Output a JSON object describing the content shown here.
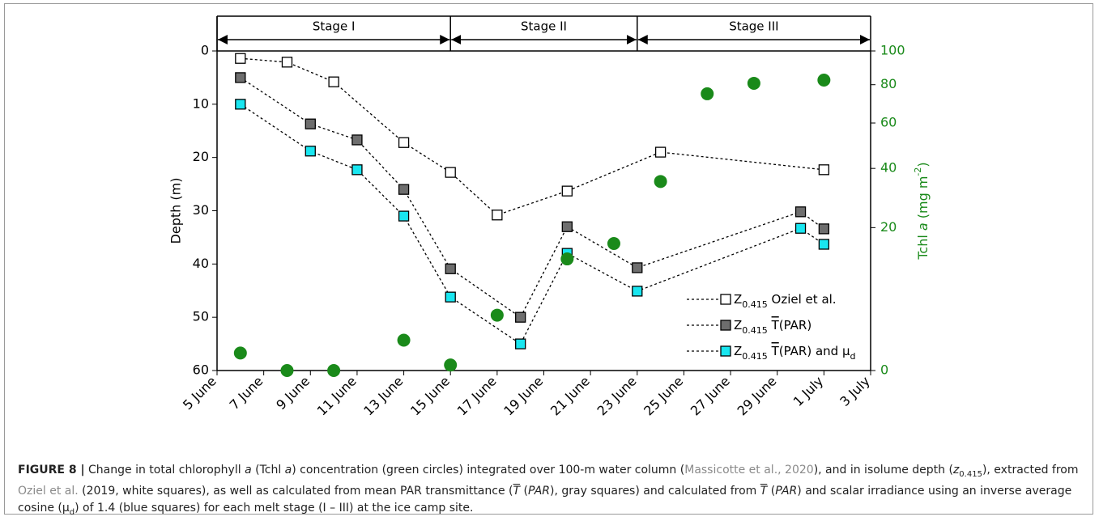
{
  "chart_data": {
    "type": "scatter-line",
    "xlim": [
      5,
      33
    ],
    "xticks": [
      {
        "value": 5,
        "label": "5 June"
      },
      {
        "value": 7,
        "label": "7 June"
      },
      {
        "value": 9,
        "label": "9 June"
      },
      {
        "value": 11,
        "label": "11 June"
      },
      {
        "value": 13,
        "label": "13 June"
      },
      {
        "value": 15,
        "label": "15 June"
      },
      {
        "value": 17,
        "label": "17 June"
      },
      {
        "value": 19,
        "label": "19 June"
      },
      {
        "value": 21,
        "label": "21 June"
      },
      {
        "value": 23,
        "label": "23 June"
      },
      {
        "value": 25,
        "label": "25 June"
      },
      {
        "value": 27,
        "label": "27 June"
      },
      {
        "value": 29,
        "label": "29 June"
      },
      {
        "value": 31,
        "label": "1 July"
      },
      {
        "value": 33,
        "label": "3 July"
      }
    ],
    "ylabel": "Depth (m)",
    "ylim": [
      60,
      0
    ],
    "yticks": [
      0,
      10,
      20,
      30,
      40,
      50,
      60
    ],
    "y2label": [
      "Tchl ",
      "a",
      " (mg m",
      "-2",
      ")"
    ],
    "y2color": "#1a8a1a",
    "y2scale": "sqrt",
    "y2lim": [
      0,
      100
    ],
    "y2ticks": [
      0,
      20,
      40,
      60,
      80,
      100
    ],
    "stages": [
      {
        "label": "Stage I",
        "start": 5,
        "end": 15
      },
      {
        "label": "Stage II",
        "start": 15,
        "end": 23
      },
      {
        "label": "Stage III",
        "start": 23,
        "end": 33
      }
    ],
    "series": [
      {
        "name_parts": [
          "Z",
          "0.415",
          " Oziel et al."
        ],
        "color": "#ffffff",
        "marker": "square",
        "x": [
          6,
          8,
          10,
          13,
          15,
          17,
          20,
          24,
          31
        ],
        "values": [
          1.4,
          2.1,
          5.8,
          17.2,
          22.8,
          30.8,
          26.3,
          19,
          22.3
        ]
      },
      {
        "name_parts": [
          "Z",
          "0.415",
          " ",
          "T",
          "(PAR)"
        ],
        "color": "#6e6e6e",
        "marker": "square",
        "x": [
          6,
          9,
          11,
          13,
          15,
          18,
          20,
          23,
          30,
          31
        ],
        "values": [
          5,
          13.7,
          16.7,
          26,
          40.9,
          50,
          33,
          40.7,
          30.2,
          33.4
        ]
      },
      {
        "name_parts": [
          "Z",
          "0.415",
          " ",
          "T",
          "(PAR) and μ",
          "d"
        ],
        "color": "#19e6f0",
        "marker": "square",
        "x": [
          6,
          9,
          11,
          13,
          15,
          18,
          20,
          23,
          30,
          31
        ],
        "values": [
          10,
          18.8,
          22.3,
          31,
          46.2,
          55,
          38,
          45.1,
          33.3,
          36.3
        ]
      },
      {
        "name": "Tchl a",
        "color": "#1a8a1a",
        "marker": "circle",
        "axis": "y2",
        "x": [
          6,
          8,
          10,
          13,
          15,
          17,
          20,
          22,
          24,
          26,
          28,
          31
        ],
        "values": [
          0.3,
          0,
          0,
          0.9,
          0.03,
          3,
          12.2,
          15.8,
          35,
          75,
          80.8,
          82.6
        ]
      }
    ]
  },
  "caption": [
    {
      "t": "FIGURE 8 |",
      "b": true
    },
    {
      "t": " Change in total chlorophyll "
    },
    {
      "t": "a",
      "i": true
    },
    {
      "t": " (Tchl "
    },
    {
      "t": "a",
      "i": true
    },
    {
      "t": ") concentration (green circles) integrated over 100-m water column ("
    },
    {
      "t": "Massicotte et al., 2020",
      "link": true
    },
    {
      "t": "), and in isolume depth ("
    },
    {
      "t": "z",
      "i": true
    },
    {
      "t": "0.415",
      "sub": true
    },
    {
      "t": "), extracted from "
    },
    {
      "t": "Oziel et al.",
      "link": true
    },
    {
      "t": " (2019, white squares), as well as calculated from mean PAR transmittance ("
    },
    {
      "t": "T",
      "i": true,
      "over": true
    },
    {
      "t": " ("
    },
    {
      "t": "PAR",
      "i": true
    },
    {
      "t": "), gray squares) and calculated from "
    },
    {
      "t": "T",
      "i": true,
      "over": true
    },
    {
      "t": " ("
    },
    {
      "t": "PAR",
      "i": true
    },
    {
      "t": ") and scalar irradiance using an inverse average cosine (μ"
    },
    {
      "t": "d",
      "sub": true
    },
    {
      "t": ") of 1.4 (blue squares) for each melt stage (I – III) at the ice camp site."
    }
  ]
}
